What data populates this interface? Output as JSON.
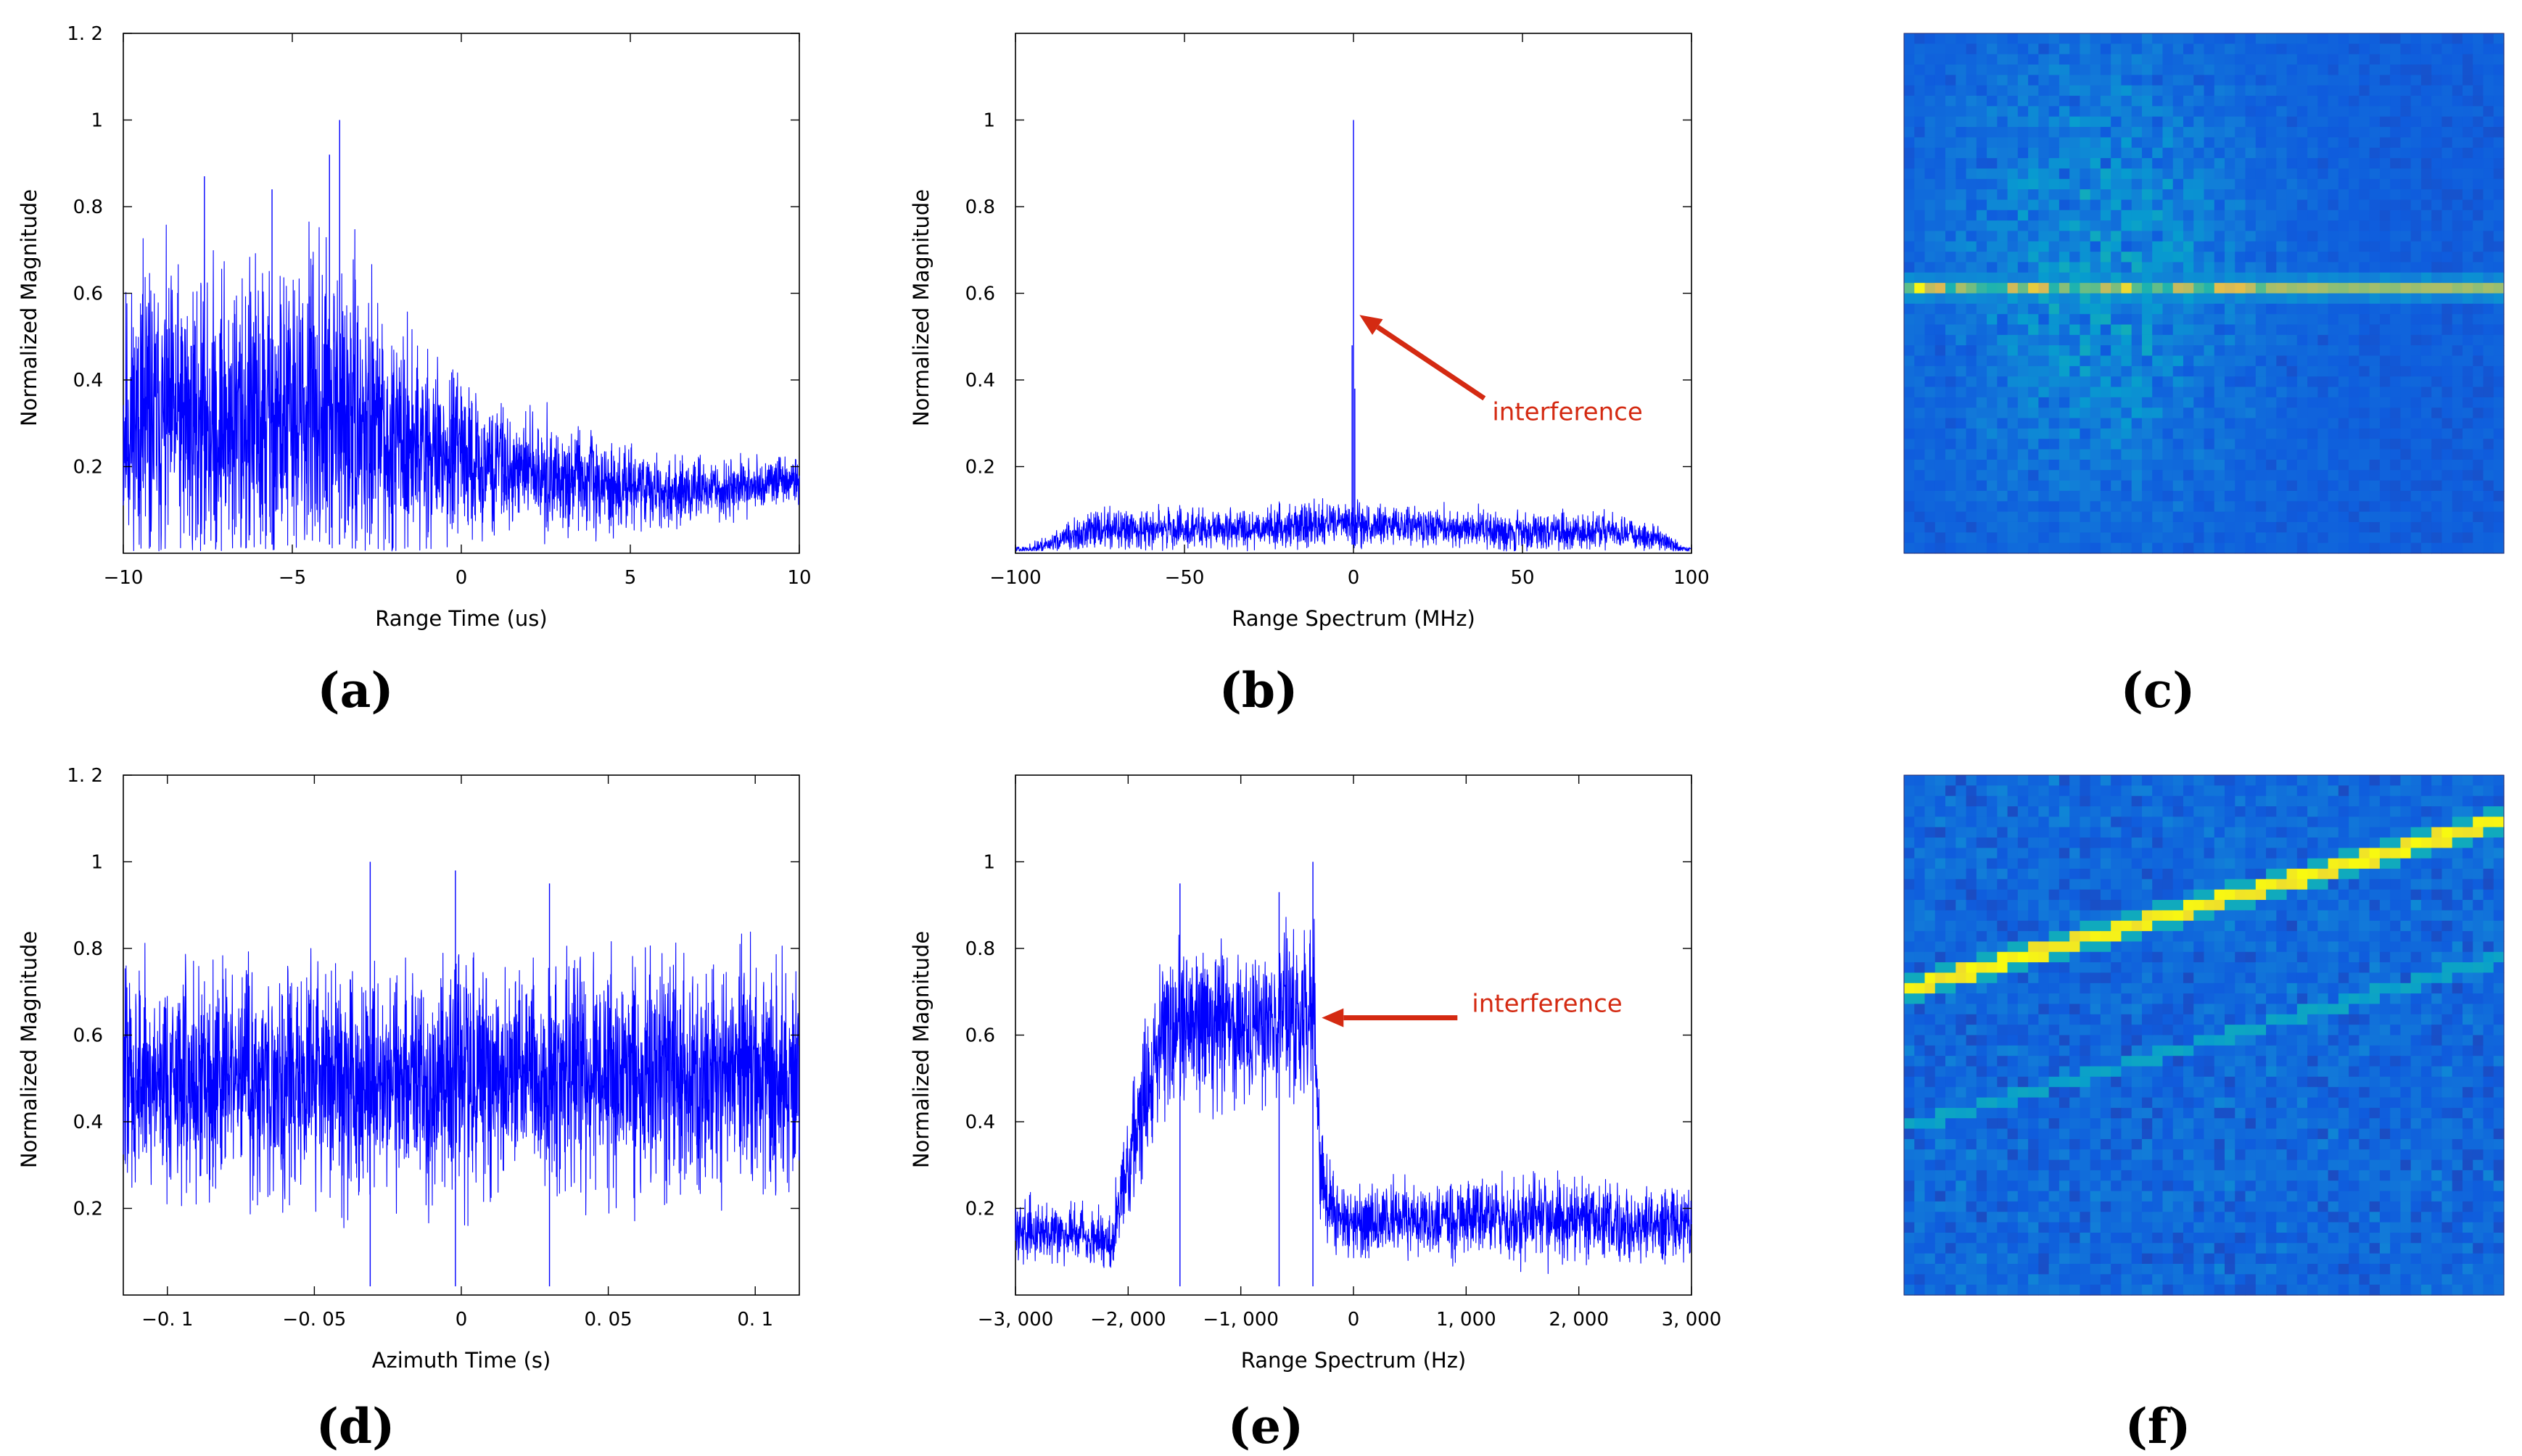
{
  "colors": {
    "trace": "#0000ff",
    "annotation": "#d42a12",
    "axis": "#000000"
  },
  "chart_data": [
    {
      "panel": "a",
      "type": "line",
      "caption": "(a)",
      "xlabel": "Range Time (us)",
      "ylabel": "Normalized Magnitude",
      "xlim": [
        -10,
        10
      ],
      "ylim": [
        0,
        1.2
      ],
      "xticks": [
        {
          "v": -10,
          "label": "−10"
        },
        {
          "v": -5,
          "label": "−5"
        },
        {
          "v": 0,
          "label": "0"
        },
        {
          "v": 5,
          "label": "5"
        },
        {
          "v": 10,
          "label": "10"
        }
      ],
      "yticks": [
        {
          "v": 0.2,
          "label": "0.2"
        },
        {
          "v": 0.4,
          "label": "0.4"
        },
        {
          "v": 0.6,
          "label": "0.6"
        },
        {
          "v": 0.8,
          "label": "0.8"
        },
        {
          "v": 1,
          "label": "1"
        },
        {
          "v": 1.2,
          "label": "1. 2"
        }
      ],
      "envelope": {
        "x": [
          -10,
          -8,
          -6,
          -4,
          -2,
          0,
          2,
          4,
          6,
          8,
          10
        ],
        "mean": [
          0.3,
          0.31,
          0.3,
          0.32,
          0.27,
          0.22,
          0.19,
          0.16,
          0.14,
          0.15,
          0.17
        ],
        "spread": [
          0.24,
          0.26,
          0.28,
          0.28,
          0.2,
          0.13,
          0.1,
          0.08,
          0.06,
          0.05,
          0.04
        ]
      },
      "peaks": [
        {
          "x": -3.6,
          "y": 1.0
        },
        {
          "x": -7.6,
          "y": 0.87
        },
        {
          "x": -5.6,
          "y": 0.84
        },
        {
          "x": -3.9,
          "y": 0.92
        }
      ],
      "n_samples": 2600,
      "seed": 11
    },
    {
      "panel": "b",
      "type": "line",
      "caption": "(b)",
      "xlabel": "Range Spectrum (MHz)",
      "ylabel": "Normalized Magnitude",
      "xlim": [
        -100,
        100
      ],
      "ylim": [
        0,
        1.2
      ],
      "xticks": [
        {
          "v": -100,
          "label": "−100"
        },
        {
          "v": -50,
          "label": "−50"
        },
        {
          "v": 0,
          "label": "0"
        },
        {
          "v": 50,
          "label": "50"
        },
        {
          "v": 100,
          "label": "100"
        }
      ],
      "yticks": [
        {
          "v": 0.2,
          "label": "0.2"
        },
        {
          "v": 0.4,
          "label": "0.4"
        },
        {
          "v": 0.6,
          "label": "0.6"
        },
        {
          "v": 0.8,
          "label": "0.8"
        },
        {
          "v": 1,
          "label": "1"
        }
      ],
      "envelope": {
        "x": [
          -100,
          -95,
          -85,
          -75,
          -50,
          -25,
          0,
          25,
          50,
          75,
          90,
          97,
          100
        ],
        "mean": [
          0.0,
          0.01,
          0.035,
          0.055,
          0.055,
          0.06,
          0.07,
          0.06,
          0.05,
          0.05,
          0.035,
          0.01,
          0.0
        ],
        "spread": [
          0.0,
          0.01,
          0.025,
          0.035,
          0.035,
          0.035,
          0.04,
          0.035,
          0.035,
          0.03,
          0.025,
          0.01,
          0.0
        ]
      },
      "peaks": [
        {
          "x": 0.0,
          "y": 1.0
        },
        {
          "x": -0.4,
          "y": 0.48
        },
        {
          "x": 0.4,
          "y": 0.38
        }
      ],
      "n_samples": 2400,
      "seed": 23,
      "annotation": {
        "text": "interference",
        "point_x": 0.5,
        "point_y": 0.55
      }
    },
    {
      "panel": "c",
      "type": "heatmap",
      "caption": "(c)",
      "rows": 50,
      "cols": 58,
      "description_free": true,
      "seed": 37
    },
    {
      "panel": "d",
      "type": "line",
      "caption": "(d)",
      "xlabel": "Azimuth Time (s)",
      "ylabel": "Normalized Magnitude",
      "xlim": [
        -0.115,
        0.115
      ],
      "ylim": [
        0,
        1.2
      ],
      "xticks": [
        {
          "v": -0.1,
          "label": "−0. 1"
        },
        {
          "v": -0.05,
          "label": "−0. 05"
        },
        {
          "v": 0,
          "label": "0"
        },
        {
          "v": 0.05,
          "label": "0. 05"
        },
        {
          "v": 0.1,
          "label": "0. 1"
        }
      ],
      "yticks": [
        {
          "v": 0.2,
          "label": "0.2"
        },
        {
          "v": 0.4,
          "label": "0.4"
        },
        {
          "v": 0.6,
          "label": "0.6"
        },
        {
          "v": 0.8,
          "label": "0.8"
        },
        {
          "v": 1,
          "label": "1"
        },
        {
          "v": 1.2,
          "label": "1. 2"
        }
      ],
      "envelope": {
        "x": [
          -0.115,
          0.115
        ],
        "mean": [
          0.5,
          0.5
        ],
        "spread": [
          0.2,
          0.2
        ]
      },
      "peaks": [
        {
          "x": -0.031,
          "y": 1.0
        },
        {
          "x": -0.002,
          "y": 0.98
        },
        {
          "x": 0.03,
          "y": 0.95
        }
      ],
      "n_samples": 2600,
      "seed": 47
    },
    {
      "panel": "e",
      "type": "line",
      "caption": "(e)",
      "xlabel": "Range Spectrum (Hz)",
      "ylabel": "Normalized Magnitude",
      "xlim": [
        -3000,
        3000
      ],
      "ylim": [
        0,
        1.2
      ],
      "xticks": [
        {
          "v": -3000,
          "label": "−3, 000"
        },
        {
          "v": -2000,
          "label": "−2, 000"
        },
        {
          "v": -1000,
          "label": "−1, 000"
        },
        {
          "v": 0,
          "label": "0"
        },
        {
          "v": 1000,
          "label": "1, 000"
        },
        {
          "v": 2000,
          "label": "2, 000"
        },
        {
          "v": 3000,
          "label": "3, 000"
        }
      ],
      "yticks": [
        {
          "v": 0.2,
          "label": "0.2"
        },
        {
          "v": 0.4,
          "label": "0.4"
        },
        {
          "v": 0.6,
          "label": "0.6"
        },
        {
          "v": 0.8,
          "label": "0.8"
        },
        {
          "v": 1,
          "label": "1"
        }
      ],
      "envelope": {
        "x": [
          -2500,
          -2150,
          -2000,
          -1700,
          -1200,
          -600,
          -350,
          -300,
          -200,
          0,
          1000,
          2000,
          2650
        ],
        "mean": [
          0.15,
          0.12,
          0.3,
          0.62,
          0.62,
          0.64,
          0.66,
          0.3,
          0.2,
          0.17,
          0.18,
          0.17,
          0.16
        ],
        "spread": [
          0.05,
          0.05,
          0.1,
          0.15,
          0.14,
          0.14,
          0.15,
          0.1,
          0.07,
          0.06,
          0.07,
          0.07,
          0.06
        ]
      },
      "peaks": [
        {
          "x": -360,
          "y": 1.0
        },
        {
          "x": -1540,
          "y": 0.95
        },
        {
          "x": -660,
          "y": 0.93
        }
      ],
      "n_samples": 2400,
      "seed": 59,
      "annotation": {
        "text": "interference",
        "point_x": -320,
        "point_y": 0.64
      }
    },
    {
      "panel": "f",
      "type": "heatmap",
      "caption": "(f)",
      "rows": 50,
      "cols": 58,
      "seed": 71
    }
  ]
}
